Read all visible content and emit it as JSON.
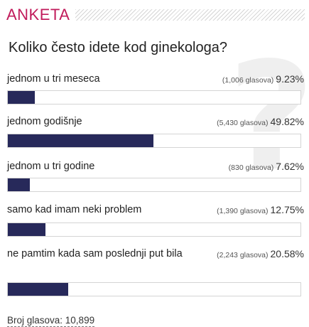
{
  "poll": {
    "title": "ANKETA",
    "question": "Koliko često idete kod ginekologa?",
    "bar_color": "#27295a",
    "title_color": "#c11b5b",
    "answers": [
      {
        "label": "jednom u tri meseca",
        "votes": "(1,006 glasova)",
        "percent": "9.23%",
        "fraction": 0.0923
      },
      {
        "label": "jednom godišnje",
        "votes": "(5,430 glasova)",
        "percent": "49.82%",
        "fraction": 0.4982
      },
      {
        "label": "jednom u tri godine",
        "votes": "(830 glasova)",
        "percent": "7.62%",
        "fraction": 0.0762
      },
      {
        "label": "samo kad imam neki problem",
        "votes": "(1,390 glasova)",
        "percent": "12.75%",
        "fraction": 0.1275
      },
      {
        "label": "ne pamtim kada sam poslednji put bila",
        "votes": "(2,243 glasova)",
        "percent": "20.58%",
        "fraction": 0.2058
      }
    ],
    "total_label": "Broj glasova: 10,899"
  }
}
